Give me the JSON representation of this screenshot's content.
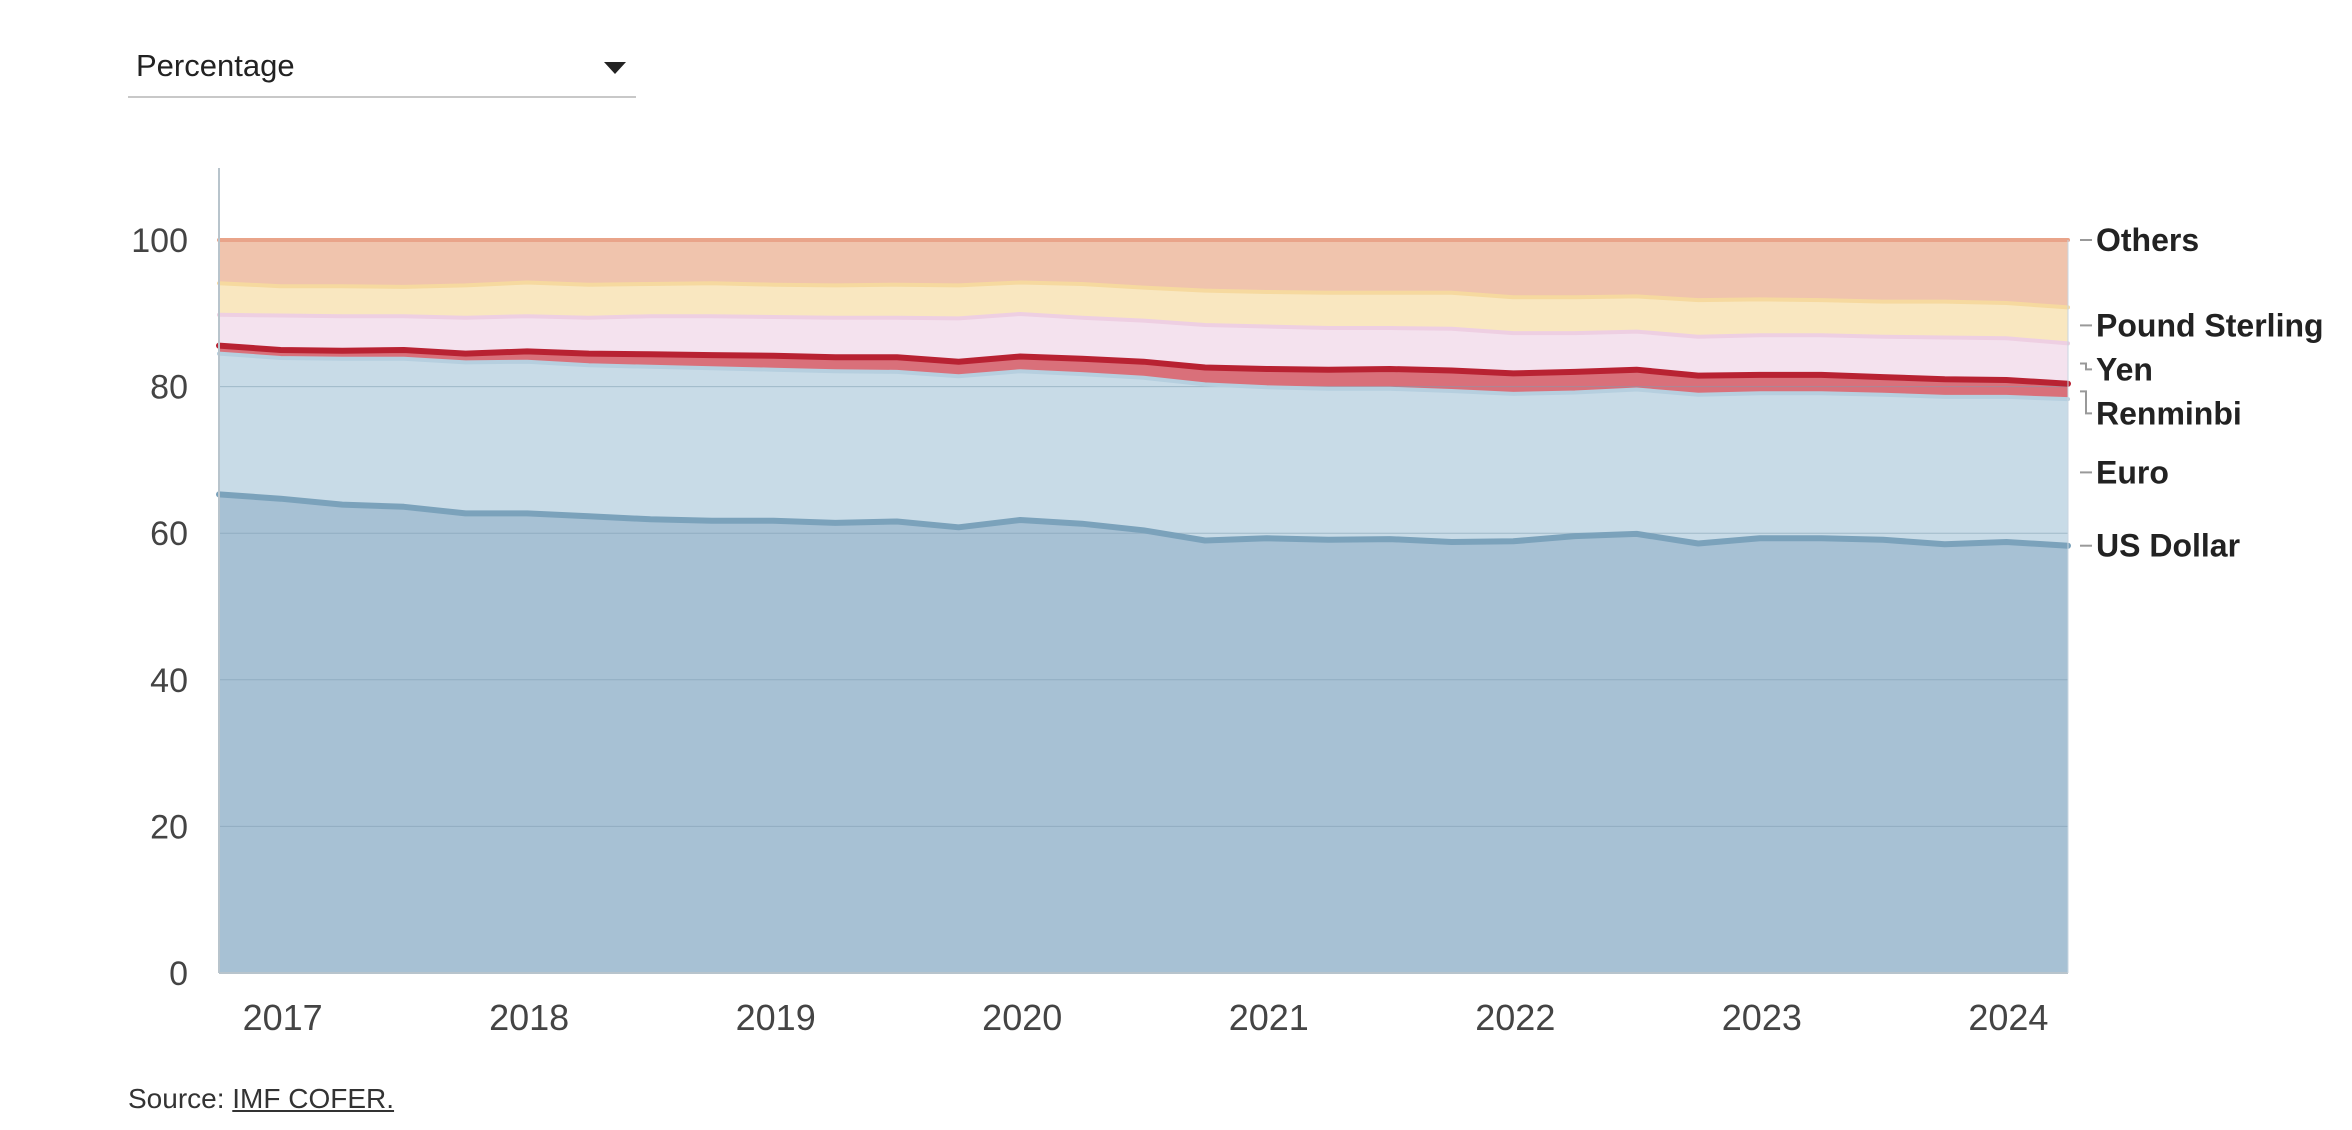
{
  "controls": {
    "metric_selected": "Percentage"
  },
  "source": {
    "prefix": "Source: ",
    "link_text": "IMF COFER."
  },
  "chart_data": {
    "type": "area",
    "stacked": true,
    "ylim": [
      0,
      100
    ],
    "yticks": [
      0,
      20,
      40,
      60,
      80,
      100
    ],
    "xticks": [
      2017,
      2018,
      2019,
      2020,
      2021,
      2022,
      2023,
      2024
    ],
    "x": [
      2016.75,
      2017.0,
      2017.25,
      2017.5,
      2017.75,
      2018.0,
      2018.25,
      2018.5,
      2018.75,
      2019.0,
      2019.25,
      2019.5,
      2019.75,
      2020.0,
      2020.25,
      2020.5,
      2020.75,
      2021.0,
      2021.25,
      2021.5,
      2021.75,
      2022.0,
      2022.25,
      2022.5,
      2022.75,
      2023.0,
      2023.25,
      2023.5,
      2023.75,
      2024.0,
      2024.25
    ],
    "series": [
      {
        "name": "US Dollar",
        "color": "#a7c1d4",
        "line": "#7ba2bb",
        "values": [
          65.3,
          64.7,
          63.9,
          63.6,
          62.7,
          62.7,
          62.3,
          61.9,
          61.7,
          61.7,
          61.4,
          61.6,
          60.8,
          61.8,
          61.3,
          60.4,
          59.0,
          59.3,
          59.1,
          59.2,
          58.8,
          58.9,
          59.6,
          59.9,
          58.6,
          59.3,
          59.3,
          59.1,
          58.5,
          58.8,
          58.3
        ]
      },
      {
        "name": "Euro",
        "color": "#c8dbe7",
        "line": "#b6cfdf",
        "values": [
          19.2,
          19.2,
          19.9,
          20.2,
          20.6,
          20.7,
          20.6,
          20.8,
          20.8,
          20.6,
          20.7,
          20.4,
          20.6,
          20.3,
          20.4,
          20.8,
          21.3,
          20.6,
          20.6,
          20.5,
          20.6,
          20.1,
          19.6,
          19.7,
          20.3,
          19.8,
          19.8,
          19.8,
          20.1,
          19.8,
          20.0
        ]
      },
      {
        "name": "Renminbi",
        "color": "#d9707a",
        "line": "#b82232",
        "values": [
          1.1,
          1.1,
          1.1,
          1.2,
          1.2,
          1.4,
          1.6,
          1.7,
          1.8,
          1.9,
          1.9,
          2.0,
          2.0,
          2.0,
          2.1,
          2.2,
          2.3,
          2.5,
          2.6,
          2.7,
          2.8,
          2.8,
          2.8,
          2.7,
          2.6,
          2.5,
          2.5,
          2.4,
          2.4,
          2.3,
          2.1
        ]
      },
      {
        "name": "Yen",
        "color": "#f4e2ee",
        "line": "#eecfe2",
        "values": [
          4.2,
          4.7,
          4.7,
          4.6,
          4.9,
          4.8,
          4.9,
          5.2,
          5.3,
          5.3,
          5.4,
          5.4,
          5.9,
          5.8,
          5.6,
          5.6,
          5.8,
          5.8,
          5.7,
          5.6,
          5.7,
          5.5,
          5.3,
          5.2,
          5.3,
          5.4,
          5.4,
          5.5,
          5.7,
          5.7,
          5.5
        ]
      },
      {
        "name": "Pound Sterling",
        "color": "#f9e7c0",
        "line": "#f6d99f",
        "values": [
          4.3,
          4.0,
          4.1,
          4.0,
          4.4,
          4.6,
          4.5,
          4.4,
          4.5,
          4.4,
          4.4,
          4.5,
          4.5,
          4.3,
          4.6,
          4.5,
          4.7,
          4.7,
          4.8,
          4.8,
          4.9,
          4.9,
          4.9,
          4.8,
          5.0,
          4.9,
          4.8,
          4.8,
          4.9,
          4.8,
          4.9
        ]
      },
      {
        "name": "Others",
        "color": "#f0c4ad",
        "line": "#e9a48a",
        "values": [
          5.9,
          6.3,
          6.3,
          6.4,
          6.2,
          5.8,
          6.1,
          6.0,
          5.9,
          6.1,
          6.2,
          6.1,
          6.2,
          5.8,
          6.0,
          6.5,
          6.9,
          7.1,
          7.2,
          7.2,
          7.2,
          7.8,
          7.8,
          7.7,
          8.2,
          8.1,
          8.2,
          8.4,
          8.4,
          8.6,
          9.2
        ]
      }
    ]
  }
}
